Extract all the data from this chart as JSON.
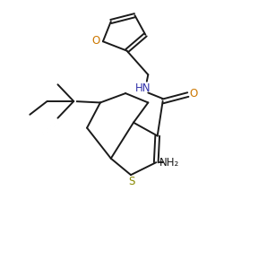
{
  "bg_color": "#ffffff",
  "line_color": "#1a1a1a",
  "atom_colors": {
    "O": "#cc7700",
    "N": "#3333aa",
    "S": "#888800",
    "C": "#1a1a1a"
  },
  "line_width": 1.4,
  "font_size": 8.5,
  "figsize": [
    2.98,
    3.09
  ],
  "dpi": 100,
  "xlim": [
    0,
    10
  ],
  "ylim": [
    0,
    10.3
  ]
}
